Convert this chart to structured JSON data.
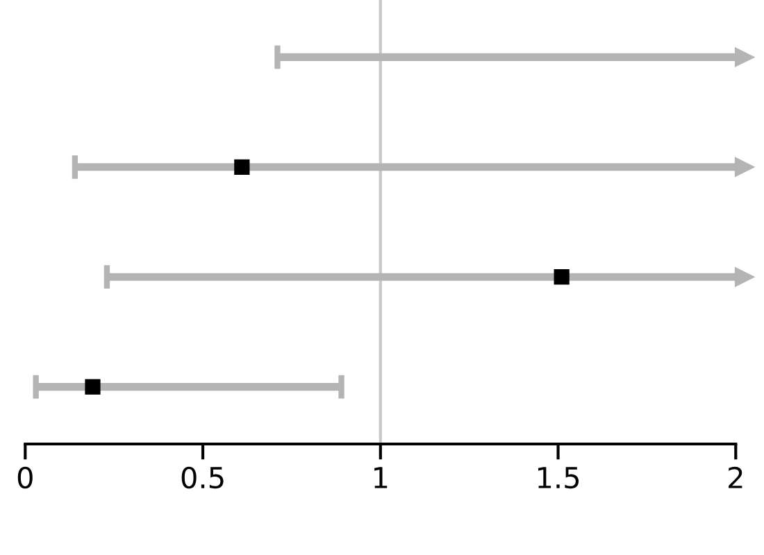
{
  "chart_data": {
    "type": "bar",
    "orientation": "horizontal",
    "categories": [
      null,
      null,
      null,
      null
    ],
    "series": [
      {
        "color": "#b4b4b4",
        "base": [
          0.71,
          0.14,
          0.23,
          0.03
        ],
        "values": [
          1.29,
          1.86,
          1.77,
          0.86
        ]
      },
      {
        "type": "scatter",
        "color": "#000000",
        "marker": "square",
        "values": [
          null,
          0.61,
          1.51,
          0.19
        ]
      }
    ],
    "xlim": [
      0,
      2
    ],
    "xticks": [
      0,
      0.5,
      1,
      1.5,
      2
    ],
    "ref_lines": [
      {
        "axis": "x",
        "value": 1,
        "color": "#c8c8c8"
      }
    ]
  }
}
